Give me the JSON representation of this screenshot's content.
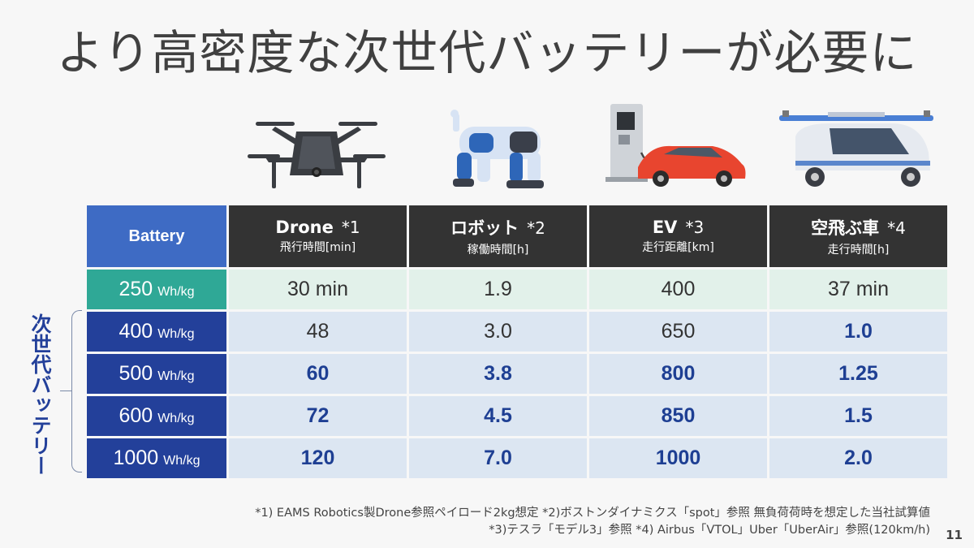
{
  "title": "より高密度な次世代バッテリーが必要に",
  "icons": [
    "drone-icon",
    "robot-dog-icon",
    "ev-charging-icon",
    "flying-car-icon"
  ],
  "table": {
    "header": {
      "battery": "Battery",
      "columns": [
        {
          "name": "Drone",
          "note": "*1",
          "sub": "飛行時間[min]"
        },
        {
          "name": "ロボット",
          "note": "*2",
          "sub": "稼働時間[h]"
        },
        {
          "name": "EV",
          "note": "*3",
          "sub": "走行距離[km]"
        },
        {
          "name": "空飛ぶ車",
          "note": "*4",
          "sub": "走行時間[h]"
        }
      ]
    },
    "rows": [
      {
        "value": "250",
        "unit": "Wh/kg",
        "cells": [
          "30 min",
          "1.9",
          "400",
          "37 min"
        ]
      },
      {
        "value": "400",
        "unit": "Wh/kg",
        "cells": [
          "48",
          "3.0",
          "650",
          "1.0"
        ]
      },
      {
        "value": "500",
        "unit": "Wh/kg",
        "cells": [
          "60",
          "3.8",
          "800",
          "1.25"
        ]
      },
      {
        "value": "600",
        "unit": "Wh/kg",
        "cells": [
          "72",
          "4.5",
          "850",
          "1.5"
        ]
      },
      {
        "value": "1000",
        "unit": "Wh/kg",
        "cells": [
          "120",
          "7.0",
          "1000",
          "2.0"
        ]
      }
    ]
  },
  "side_label": "次世代バッテリー",
  "notes": {
    "line1": "*1) EAMS Robotics製Drone参照ペイロード2kg想定 *2)ボストンダイナミクス「spot」参照 無負荷荷時を想定した当社試算値",
    "line2": "*3)テスラ「モデル3」参照 *4) Airbus「VTOL」Uber「UberAir」参照(120km/h)"
  },
  "page_number": "11",
  "colors": {
    "header_dark": "#333333",
    "battery_header": "#3e6bc4",
    "battery_current": "#2fa896",
    "battery_next": "#23409a",
    "cell_current": "#e2f1ea",
    "cell_next": "#dce6f2",
    "bold_value": "#1e3f93"
  }
}
